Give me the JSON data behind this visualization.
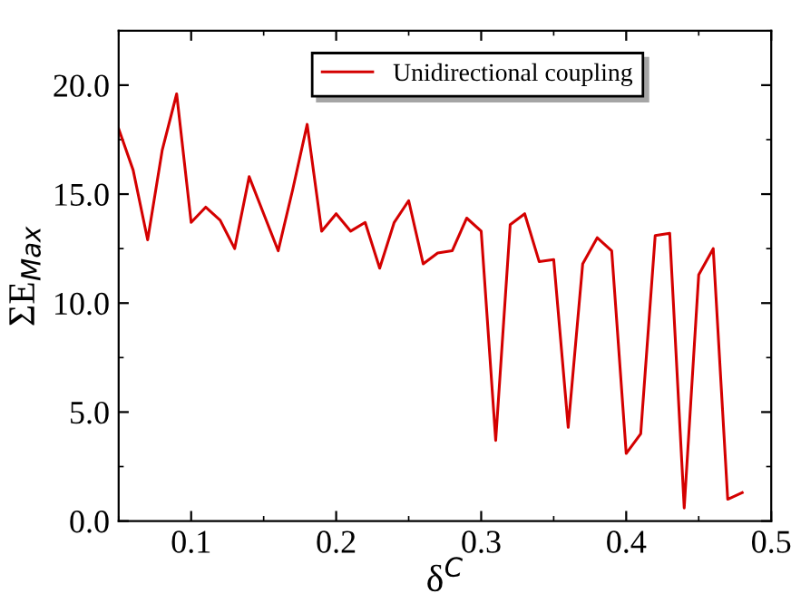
{
  "chart_data": {
    "type": "line",
    "xlabel": "δ$^{C}$",
    "ylabel": "ΣE$_{Max}$",
    "x": [
      0.05,
      0.06,
      0.07,
      0.08,
      0.09,
      0.1,
      0.11,
      0.12,
      0.13,
      0.14,
      0.15,
      0.16,
      0.17,
      0.18,
      0.19,
      0.2,
      0.21,
      0.22,
      0.23,
      0.24,
      0.25,
      0.26,
      0.27,
      0.28,
      0.29,
      0.3,
      0.31,
      0.32,
      0.33,
      0.34,
      0.35,
      0.36,
      0.37,
      0.38,
      0.39,
      0.4,
      0.41,
      0.42,
      0.43,
      0.44,
      0.45,
      0.46,
      0.47,
      0.48
    ],
    "series": [
      {
        "name": "Unidirectional coupling",
        "color": "#d40000",
        "values": [
          18.0,
          16.1,
          12.9,
          17.0,
          19.6,
          13.7,
          14.4,
          13.8,
          12.5,
          15.8,
          14.1,
          12.4,
          15.2,
          18.2,
          13.3,
          14.1,
          13.3,
          13.7,
          11.6,
          13.7,
          14.7,
          11.8,
          12.3,
          12.4,
          13.9,
          13.3,
          3.7,
          13.6,
          14.1,
          11.9,
          12.0,
          4.3,
          11.8,
          13.0,
          12.4,
          3.1,
          4.0,
          13.1,
          13.2,
          0.6,
          11.3,
          12.5,
          1.0,
          1.3
        ]
      }
    ],
    "xlim": [
      0.05,
      0.5
    ],
    "xticks": [
      0.1,
      0.2,
      0.3,
      0.4,
      0.5
    ],
    "ylim": [
      0,
      22.5
    ],
    "yticks": [
      {
        "value": 0,
        "label": "0.0"
      },
      {
        "value": 5,
        "label": "5.0"
      },
      {
        "value": 10,
        "label": "10.0"
      },
      {
        "value": 15,
        "label": "15.0"
      },
      {
        "value": 20,
        "label": "20.0"
      }
    ],
    "legend": "top",
    "grid": false,
    "marker": "none",
    "line_style": "solid"
  }
}
